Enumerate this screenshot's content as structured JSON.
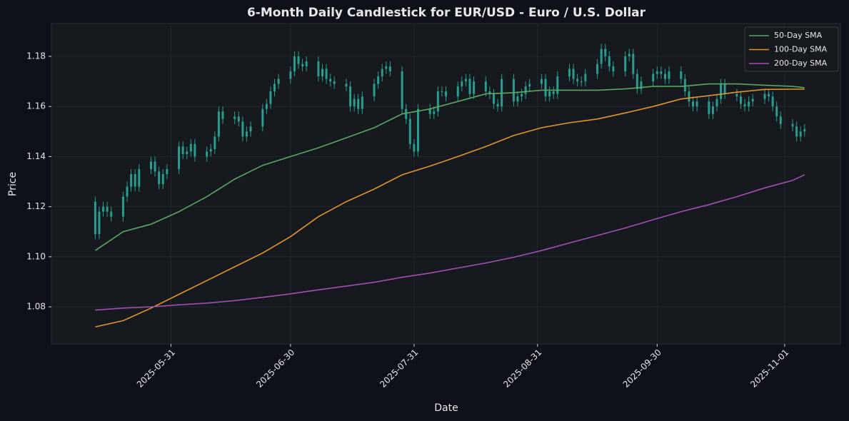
{
  "chart_data": {
    "type": "candlestick",
    "title": "6-Month Daily Candlestick for EUR/USD - Euro / U.S. Dollar",
    "xlabel": "Date",
    "ylabel": "Price",
    "x": [
      "2025-05-12",
      "2025-05-13",
      "2025-05-14",
      "2025-05-15",
      "2025-05-16",
      "2025-05-19",
      "2025-05-20",
      "2025-05-21",
      "2025-05-22",
      "2025-05-23",
      "2025-05-26",
      "2025-05-27",
      "2025-05-28",
      "2025-05-29",
      "2025-05-30",
      "2025-06-02",
      "2025-06-03",
      "2025-06-04",
      "2025-06-05",
      "2025-06-06",
      "2025-06-09",
      "2025-06-10",
      "2025-06-11",
      "2025-06-12",
      "2025-06-13",
      "2025-06-16",
      "2025-06-17",
      "2025-06-18",
      "2025-06-19",
      "2025-06-20",
      "2025-06-23",
      "2025-06-24",
      "2025-06-25",
      "2025-06-26",
      "2025-06-27",
      "2025-06-30",
      "2025-07-01",
      "2025-07-02",
      "2025-07-03",
      "2025-07-04",
      "2025-07-07",
      "2025-07-08",
      "2025-07-09",
      "2025-07-10",
      "2025-07-11",
      "2025-07-14",
      "2025-07-15",
      "2025-07-16",
      "2025-07-17",
      "2025-07-18",
      "2025-07-21",
      "2025-07-22",
      "2025-07-23",
      "2025-07-24",
      "2025-07-25",
      "2025-07-28",
      "2025-07-29",
      "2025-07-30",
      "2025-07-31",
      "2025-08-01",
      "2025-08-04",
      "2025-08-05",
      "2025-08-06",
      "2025-08-07",
      "2025-08-08",
      "2025-08-11",
      "2025-08-12",
      "2025-08-13",
      "2025-08-14",
      "2025-08-15",
      "2025-08-18",
      "2025-08-19",
      "2025-08-20",
      "2025-08-21",
      "2025-08-22",
      "2025-08-25",
      "2025-08-26",
      "2025-08-27",
      "2025-08-28",
      "2025-08-29",
      "2025-09-01",
      "2025-09-02",
      "2025-09-03",
      "2025-09-04",
      "2025-09-05",
      "2025-09-08",
      "2025-09-09",
      "2025-09-10",
      "2025-09-11",
      "2025-09-12",
      "2025-09-15",
      "2025-09-16",
      "2025-09-17",
      "2025-09-18",
      "2025-09-19",
      "2025-09-22",
      "2025-09-23",
      "2025-09-24",
      "2025-09-25",
      "2025-09-26",
      "2025-09-29",
      "2025-09-30",
      "2025-10-01",
      "2025-10-02",
      "2025-10-03",
      "2025-10-06",
      "2025-10-07",
      "2025-10-08",
      "2025-10-09",
      "2025-10-10",
      "2025-10-13",
      "2025-10-14",
      "2025-10-15",
      "2025-10-16",
      "2025-10-17",
      "2025-10-20",
      "2025-10-21",
      "2025-10-22",
      "2025-10-23",
      "2025-10-24",
      "2025-10-27",
      "2025-10-28",
      "2025-10-29",
      "2025-10-30",
      "2025-10-31",
      "2025-11-03",
      "2025-11-04",
      "2025-11-05",
      "2025-11-06"
    ],
    "open": [
      1.122,
      1.109,
      1.118,
      1.12,
      1.118,
      1.116,
      1.124,
      1.128,
      1.133,
      1.128,
      1.135,
      1.138,
      1.134,
      1.129,
      1.133,
      1.135,
      1.144,
      1.141,
      1.142,
      1.145,
      1.14,
      1.142,
      1.143,
      1.148,
      1.158,
      1.155,
      1.156,
      1.154,
      1.148,
      1.15,
      1.152,
      1.159,
      1.161,
      1.166,
      1.169,
      1.171,
      1.174,
      1.18,
      1.177,
      1.176,
      1.178,
      1.172,
      1.175,
      1.171,
      1.17,
      1.169,
      1.168,
      1.16,
      1.163,
      1.159,
      1.164,
      1.169,
      1.172,
      1.175,
      1.176,
      1.174,
      1.159,
      1.155,
      1.145,
      1.142,
      1.159,
      1.157,
      1.158,
      1.166,
      1.166,
      1.164,
      1.168,
      1.17,
      1.171,
      1.165,
      1.17,
      1.166,
      1.165,
      1.161,
      1.16,
      1.171,
      1.162,
      1.164,
      1.165,
      1.168,
      1.169,
      1.171,
      1.164,
      1.166,
      1.165,
      1.172,
      1.175,
      1.171,
      1.17,
      1.17,
      1.173,
      1.177,
      1.183,
      1.18,
      1.176,
      1.174,
      1.18,
      1.181,
      1.173,
      1.167,
      1.17,
      1.173,
      1.174,
      1.173,
      1.171,
      1.174,
      1.171,
      1.166,
      1.162,
      1.16,
      1.162,
      1.157,
      1.16,
      1.163,
      1.169,
      1.165,
      1.164,
      1.161,
      1.16,
      1.162,
      1.163,
      1.165,
      1.164,
      1.16,
      1.156,
      1.153,
      1.152,
      1.148,
      1.15
    ],
    "high": [
      1.124,
      1.12,
      1.122,
      1.122,
      1.12,
      1.126,
      1.13,
      1.135,
      1.135,
      1.137,
      1.14,
      1.14,
      1.136,
      1.135,
      1.137,
      1.146,
      1.146,
      1.144,
      1.147,
      1.147,
      1.144,
      1.145,
      1.15,
      1.16,
      1.16,
      1.158,
      1.158,
      1.156,
      1.152,
      1.154,
      1.161,
      1.163,
      1.168,
      1.171,
      1.173,
      1.176,
      1.182,
      1.182,
      1.179,
      1.18,
      1.18,
      1.177,
      1.177,
      1.173,
      1.172,
      1.171,
      1.17,
      1.165,
      1.165,
      1.166,
      1.171,
      1.174,
      1.177,
      1.178,
      1.178,
      1.176,
      1.161,
      1.157,
      1.147,
      1.161,
      1.161,
      1.16,
      1.168,
      1.168,
      1.168,
      1.17,
      1.172,
      1.173,
      1.173,
      1.172,
      1.172,
      1.168,
      1.167,
      1.163,
      1.173,
      1.173,
      1.166,
      1.167,
      1.17,
      1.171,
      1.173,
      1.173,
      1.168,
      1.168,
      1.174,
      1.177,
      1.177,
      1.173,
      1.172,
      1.175,
      1.179,
      1.185,
      1.185,
      1.182,
      1.178,
      1.182,
      1.183,
      1.183,
      1.175,
      1.172,
      1.175,
      1.176,
      1.176,
      1.175,
      1.176,
      1.176,
      1.173,
      1.168,
      1.164,
      1.164,
      1.164,
      1.162,
      1.165,
      1.171,
      1.171,
      1.167,
      1.166,
      1.163,
      1.164,
      1.165,
      1.167,
      1.167,
      1.166,
      1.162,
      1.158,
      1.155,
      1.154,
      1.152,
      1.153
    ],
    "low": [
      1.107,
      1.107,
      1.116,
      1.116,
      1.114,
      1.114,
      1.122,
      1.126,
      1.126,
      1.126,
      1.133,
      1.132,
      1.127,
      1.127,
      1.131,
      1.133,
      1.139,
      1.139,
      1.14,
      1.138,
      1.138,
      1.14,
      1.141,
      1.146,
      1.153,
      1.153,
      1.152,
      1.146,
      1.146,
      1.148,
      1.15,
      1.157,
      1.159,
      1.164,
      1.167,
      1.169,
      1.172,
      1.175,
      1.174,
      1.174,
      1.17,
      1.17,
      1.169,
      1.168,
      1.167,
      1.166,
      1.158,
      1.158,
      1.157,
      1.157,
      1.162,
      1.167,
      1.17,
      1.173,
      1.172,
      1.157,
      1.153,
      1.143,
      1.14,
      1.14,
      1.155,
      1.155,
      1.156,
      1.164,
      1.162,
      1.162,
      1.166,
      1.168,
      1.163,
      1.163,
      1.164,
      1.163,
      1.159,
      1.158,
      1.158,
      1.16,
      1.16,
      1.162,
      1.163,
      1.166,
      1.167,
      1.162,
      1.162,
      1.163,
      1.163,
      1.17,
      1.169,
      1.168,
      1.168,
      1.168,
      1.171,
      1.175,
      1.178,
      1.174,
      1.172,
      1.172,
      1.178,
      1.171,
      1.165,
      1.165,
      1.168,
      1.171,
      1.171,
      1.169,
      1.169,
      1.169,
      1.164,
      1.16,
      1.158,
      1.158,
      1.155,
      1.155,
      1.158,
      1.161,
      1.163,
      1.162,
      1.159,
      1.158,
      1.158,
      1.16,
      1.161,
      1.162,
      1.158,
      1.154,
      1.151,
      1.15,
      1.146,
      1.146,
      1.148
    ],
    "close": [
      1.109,
      1.118,
      1.12,
      1.118,
      1.116,
      1.124,
      1.128,
      1.133,
      1.128,
      1.135,
      1.138,
      1.134,
      1.129,
      1.133,
      1.135,
      1.144,
      1.141,
      1.142,
      1.145,
      1.14,
      1.142,
      1.143,
      1.148,
      1.158,
      1.155,
      1.156,
      1.154,
      1.148,
      1.15,
      1.152,
      1.159,
      1.161,
      1.166,
      1.169,
      1.171,
      1.174,
      1.18,
      1.177,
      1.176,
      1.178,
      1.172,
      1.175,
      1.171,
      1.17,
      1.169,
      1.168,
      1.16,
      1.163,
      1.159,
      1.164,
      1.169,
      1.172,
      1.175,
      1.176,
      1.174,
      1.159,
      1.155,
      1.145,
      1.142,
      1.159,
      1.157,
      1.158,
      1.166,
      1.166,
      1.164,
      1.168,
      1.17,
      1.171,
      1.165,
      1.17,
      1.166,
      1.165,
      1.161,
      1.16,
      1.171,
      1.162,
      1.164,
      1.165,
      1.168,
      1.169,
      1.171,
      1.164,
      1.166,
      1.165,
      1.172,
      1.175,
      1.171,
      1.17,
      1.17,
      1.173,
      1.177,
      1.183,
      1.18,
      1.176,
      1.174,
      1.18,
      1.181,
      1.173,
      1.167,
      1.17,
      1.173,
      1.174,
      1.173,
      1.171,
      1.174,
      1.171,
      1.166,
      1.162,
      1.16,
      1.162,
      1.157,
      1.16,
      1.163,
      1.169,
      1.165,
      1.164,
      1.161,
      1.16,
      1.162,
      1.163,
      1.165,
      1.164,
      1.16,
      1.156,
      1.153,
      1.152,
      1.148,
      1.15,
      1.151
    ],
    "candle_color": "#2a9d8f",
    "series": [
      {
        "name": "50-Day SMA",
        "color": "#5aa862",
        "x": [
          "2025-05-12",
          "2025-05-19",
          "2025-05-26",
          "2025-06-02",
          "2025-06-09",
          "2025-06-16",
          "2025-06-23",
          "2025-06-30",
          "2025-07-07",
          "2025-07-14",
          "2025-07-21",
          "2025-07-28",
          "2025-08-04",
          "2025-08-11",
          "2025-08-18",
          "2025-08-25",
          "2025-09-01",
          "2025-09-08",
          "2025-09-15",
          "2025-09-22",
          "2025-09-29",
          "2025-10-06",
          "2025-10-13",
          "2025-10-20",
          "2025-10-27",
          "2025-11-03",
          "2025-11-06"
        ],
        "values": [
          1.1025,
          1.11,
          1.113,
          1.118,
          1.124,
          1.131,
          1.1365,
          1.14,
          1.1435,
          1.1475,
          1.1515,
          1.157,
          1.159,
          1.162,
          1.165,
          1.1655,
          1.1665,
          1.1665,
          1.1665,
          1.167,
          1.168,
          1.168,
          1.169,
          1.169,
          1.1685,
          1.168,
          1.1675
        ]
      },
      {
        "name": "100-Day SMA",
        "color": "#e0952f",
        "x": [
          "2025-05-12",
          "2025-05-19",
          "2025-05-26",
          "2025-06-02",
          "2025-06-09",
          "2025-06-16",
          "2025-06-23",
          "2025-06-30",
          "2025-07-07",
          "2025-07-14",
          "2025-07-21",
          "2025-07-28",
          "2025-08-04",
          "2025-08-11",
          "2025-08-18",
          "2025-08-25",
          "2025-09-01",
          "2025-09-08",
          "2025-09-15",
          "2025-09-22",
          "2025-09-29",
          "2025-10-06",
          "2025-10-13",
          "2025-10-20",
          "2025-10-27",
          "2025-11-03",
          "2025-11-06"
        ],
        "values": [
          1.072,
          1.0745,
          1.0795,
          1.085,
          1.0905,
          1.096,
          1.1015,
          1.108,
          1.116,
          1.122,
          1.127,
          1.1327,
          1.1362,
          1.14,
          1.144,
          1.1484,
          1.1515,
          1.1535,
          1.155,
          1.1574,
          1.16,
          1.163,
          1.1643,
          1.1657,
          1.1668,
          1.1669,
          1.1669
        ]
      },
      {
        "name": "200-Day SMA",
        "color": "#a54fb2",
        "x": [
          "2025-05-12",
          "2025-05-19",
          "2025-05-26",
          "2025-06-02",
          "2025-06-09",
          "2025-06-16",
          "2025-06-23",
          "2025-06-30",
          "2025-07-07",
          "2025-07-14",
          "2025-07-21",
          "2025-07-28",
          "2025-08-04",
          "2025-08-11",
          "2025-08-18",
          "2025-08-25",
          "2025-09-01",
          "2025-09-08",
          "2025-09-15",
          "2025-09-22",
          "2025-09-29",
          "2025-10-06",
          "2025-10-13",
          "2025-10-20",
          "2025-10-27",
          "2025-11-03",
          "2025-11-06"
        ],
        "values": [
          1.0787,
          1.0795,
          1.08,
          1.0808,
          1.0815,
          1.0825,
          1.0838,
          1.0852,
          1.0868,
          1.0883,
          1.0898,
          1.0918,
          1.0935,
          1.0955,
          1.0975,
          1.0998,
          1.1025,
          1.1055,
          1.1085,
          1.1115,
          1.1148,
          1.118,
          1.1208,
          1.124,
          1.1275,
          1.1305,
          1.1327
        ]
      }
    ],
    "xlim": [
      "2025-05-01",
      "2025-11-15"
    ],
    "xticks": [
      "2025-05-31",
      "2025-06-30",
      "2025-07-31",
      "2025-08-31",
      "2025-09-30",
      "2025-11-01"
    ],
    "ylim": [
      1.0652,
      1.1931
    ],
    "yticks": [
      1.08,
      {
        "value": 1.1,
        "label": "1.10"
      },
      1.12,
      1.14,
      1.16,
      1.18
    ],
    "grid": true,
    "legend": "upper right"
  }
}
